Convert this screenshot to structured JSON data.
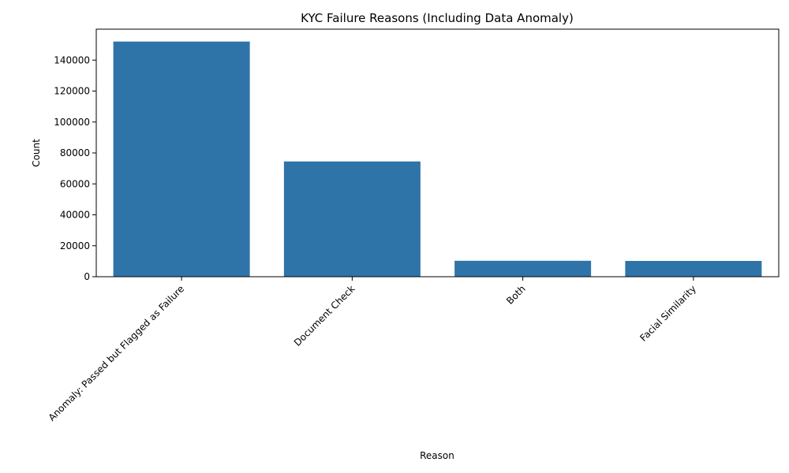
{
  "chart_data": {
    "type": "bar",
    "title": "KYC Failure Reasons (Including Data Anomaly)",
    "xlabel": "Reason",
    "ylabel": "Count",
    "categories": [
      "Anomaly: Passed but Flagged as Failure",
      "Document Check",
      "Both",
      "Facial Similarity"
    ],
    "values": [
      152000,
      74500,
      10300,
      10200
    ],
    "ylim": [
      0,
      160000
    ],
    "yticks": [
      0,
      20000,
      40000,
      60000,
      80000,
      100000,
      120000,
      140000
    ],
    "bar_color": "#2f74a8",
    "grid": false
  }
}
